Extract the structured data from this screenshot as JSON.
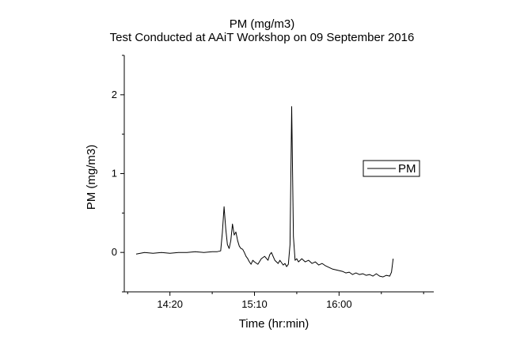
{
  "chart_data": {
    "type": "line",
    "title": "PM (mg/m3)",
    "subtitle": "Test Conducted at AAiT Workshop on 09 September 2016",
    "xlabel": "Time (hr:min)",
    "ylabel": "PM (mg/m3)",
    "x_ticks": [
      "14:20",
      "15:10",
      "16:00"
    ],
    "y_ticks": [
      0,
      1,
      2
    ],
    "xlim": [
      "13:53",
      "16:56"
    ],
    "ylim": [
      -0.5,
      2.5
    ],
    "legend": {
      "position": "right",
      "entries": [
        "PM"
      ]
    },
    "grid": false,
    "series": [
      {
        "name": "PM",
        "color": "#000000",
        "points": [
          [
            "14:00",
            -0.02
          ],
          [
            "14:05",
            0.0
          ],
          [
            "14:10",
            -0.01
          ],
          [
            "14:15",
            0.0
          ],
          [
            "14:20",
            -0.01
          ],
          [
            "14:25",
            0.0
          ],
          [
            "14:30",
            0.0
          ],
          [
            "14:35",
            0.01
          ],
          [
            "14:40",
            0.0
          ],
          [
            "14:45",
            0.01
          ],
          [
            "14:48",
            0.01
          ],
          [
            "14:50",
            0.02
          ],
          [
            "14:51",
            0.25
          ],
          [
            "14:52",
            0.58
          ],
          [
            "14:53",
            0.3
          ],
          [
            "14:54",
            0.1
          ],
          [
            "14:55",
            0.05
          ],
          [
            "14:56",
            0.15
          ],
          [
            "14:57",
            0.36
          ],
          [
            "14:58",
            0.22
          ],
          [
            "14:59",
            0.26
          ],
          [
            "15:00",
            0.15
          ],
          [
            "15:01",
            0.08
          ],
          [
            "15:02",
            0.05
          ],
          [
            "15:03",
            0.04
          ],
          [
            "15:04",
            0.0
          ],
          [
            "15:05",
            -0.05
          ],
          [
            "15:06",
            -0.08
          ],
          [
            "15:07",
            -0.12
          ],
          [
            "15:08",
            -0.15
          ],
          [
            "15:09",
            -0.1
          ],
          [
            "15:10",
            -0.12
          ],
          [
            "15:12",
            -0.15
          ],
          [
            "15:14",
            -0.08
          ],
          [
            "15:16",
            -0.05
          ],
          [
            "15:18",
            -0.1
          ],
          [
            "15:19",
            -0.03
          ],
          [
            "15:20",
            0.0
          ],
          [
            "15:21",
            -0.05
          ],
          [
            "15:22",
            -0.1
          ],
          [
            "15:23",
            -0.12
          ],
          [
            "15:24",
            -0.14
          ],
          [
            "15:25",
            -0.1
          ],
          [
            "15:26",
            -0.13
          ],
          [
            "15:27",
            -0.16
          ],
          [
            "15:28",
            -0.14
          ],
          [
            "15:29",
            -0.18
          ],
          [
            "15:30",
            -0.15
          ],
          [
            "15:31",
            0.1
          ],
          [
            "15:32",
            1.85
          ],
          [
            "15:33",
            0.2
          ],
          [
            "15:34",
            -0.1
          ],
          [
            "15:35",
            -0.08
          ],
          [
            "15:36",
            -0.12
          ],
          [
            "15:37",
            -0.1
          ],
          [
            "15:38",
            -0.08
          ],
          [
            "15:40",
            -0.12
          ],
          [
            "15:42",
            -0.1
          ],
          [
            "15:44",
            -0.14
          ],
          [
            "15:46",
            -0.12
          ],
          [
            "15:48",
            -0.16
          ],
          [
            "15:50",
            -0.14
          ],
          [
            "15:52",
            -0.17
          ],
          [
            "15:54",
            -0.19
          ],
          [
            "15:56",
            -0.21
          ],
          [
            "15:58",
            -0.22
          ],
          [
            "16:00",
            -0.23
          ],
          [
            "16:02",
            -0.24
          ],
          [
            "16:04",
            -0.26
          ],
          [
            "16:06",
            -0.25
          ],
          [
            "16:08",
            -0.28
          ],
          [
            "16:10",
            -0.26
          ],
          [
            "16:12",
            -0.28
          ],
          [
            "16:14",
            -0.27
          ],
          [
            "16:16",
            -0.29
          ],
          [
            "16:18",
            -0.28
          ],
          [
            "16:20",
            -0.3
          ],
          [
            "16:22",
            -0.27
          ],
          [
            "16:24",
            -0.3
          ],
          [
            "16:26",
            -0.31
          ],
          [
            "16:28",
            -0.29
          ],
          [
            "16:30",
            -0.3
          ],
          [
            "16:31",
            -0.25
          ],
          [
            "16:32",
            -0.08
          ]
        ]
      }
    ]
  }
}
